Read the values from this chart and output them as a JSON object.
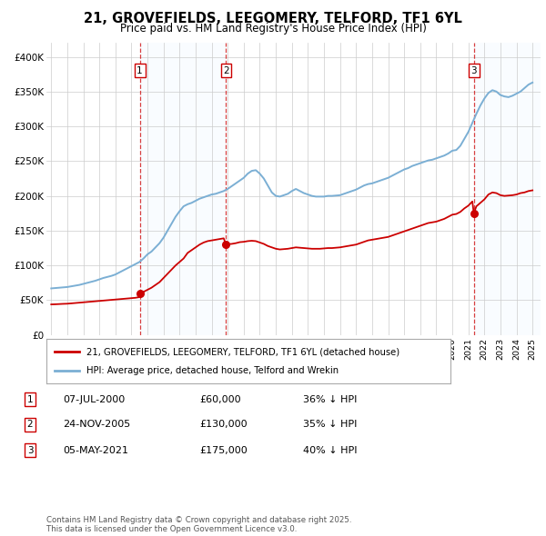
{
  "title": "21, GROVEFIELDS, LEEGOMERY, TELFORD, TF1 6YL",
  "subtitle": "Price paid vs. HM Land Registry's House Price Index (HPI)",
  "hpi_color": "#7bafd4",
  "price_color": "#cc0000",
  "shade_color": "#ddeeff",
  "purchases": [
    {
      "date_num": 2000.52,
      "price": 60000,
      "label": "1"
    },
    {
      "date_num": 2005.9,
      "price": 130000,
      "label": "2"
    },
    {
      "date_num": 2021.34,
      "price": 175000,
      "label": "3"
    }
  ],
  "purchase_dates_str": [
    "07-JUL-2000",
    "24-NOV-2005",
    "05-MAY-2021"
  ],
  "purchase_prices_str": [
    "£60,000",
    "£130,000",
    "£175,000"
  ],
  "purchase_pcts": [
    "36% ↓ HPI",
    "35% ↓ HPI",
    "40% ↓ HPI"
  ],
  "legend_label_red": "21, GROVEFIELDS, LEEGOMERY, TELFORD, TF1 6YL (detached house)",
  "legend_label_blue": "HPI: Average price, detached house, Telford and Wrekin",
  "footnote": "Contains HM Land Registry data © Crown copyright and database right 2025.\nThis data is licensed under the Open Government Licence v3.0.",
  "ylim": [
    0,
    420000
  ],
  "yticks": [
    0,
    50000,
    100000,
    150000,
    200000,
    250000,
    300000,
    350000,
    400000
  ],
  "ytick_labels": [
    "£0",
    "£50K",
    "£100K",
    "£150K",
    "£200K",
    "£250K",
    "£300K",
    "£350K",
    "£400K"
  ],
  "xlim_start": 1994.7,
  "xlim_end": 2025.5,
  "background_color": "#ffffff",
  "grid_color": "#cccccc",
  "hpi_data": [
    [
      1995.0,
      67000
    ],
    [
      1995.25,
      67500
    ],
    [
      1995.5,
      68000
    ],
    [
      1995.75,
      68500
    ],
    [
      1996.0,
      69000
    ],
    [
      1996.25,
      70000
    ],
    [
      1996.5,
      71000
    ],
    [
      1996.75,
      72000
    ],
    [
      1997.0,
      73500
    ],
    [
      1997.25,
      75000
    ],
    [
      1997.5,
      76500
    ],
    [
      1997.75,
      78000
    ],
    [
      1998.0,
      80000
    ],
    [
      1998.25,
      82000
    ],
    [
      1998.5,
      83500
    ],
    [
      1998.75,
      85000
    ],
    [
      1999.0,
      87000
    ],
    [
      1999.25,
      90000
    ],
    [
      1999.5,
      93000
    ],
    [
      1999.75,
      96000
    ],
    [
      2000.0,
      99000
    ],
    [
      2000.25,
      102000
    ],
    [
      2000.5,
      105000
    ],
    [
      2000.75,
      110000
    ],
    [
      2001.0,
      116000
    ],
    [
      2001.25,
      120000
    ],
    [
      2001.5,
      126000
    ],
    [
      2001.75,
      132000
    ],
    [
      2002.0,
      140000
    ],
    [
      2002.25,
      150000
    ],
    [
      2002.5,
      160000
    ],
    [
      2002.75,
      170000
    ],
    [
      2003.0,
      178000
    ],
    [
      2003.25,
      185000
    ],
    [
      2003.5,
      188000
    ],
    [
      2003.75,
      190000
    ],
    [
      2004.0,
      193000
    ],
    [
      2004.25,
      196000
    ],
    [
      2004.5,
      198000
    ],
    [
      2004.75,
      200000
    ],
    [
      2005.0,
      202000
    ],
    [
      2005.25,
      203000
    ],
    [
      2005.5,
      205000
    ],
    [
      2005.75,
      207000
    ],
    [
      2006.0,
      210000
    ],
    [
      2006.25,
      214000
    ],
    [
      2006.5,
      218000
    ],
    [
      2006.75,
      222000
    ],
    [
      2007.0,
      226000
    ],
    [
      2007.25,
      232000
    ],
    [
      2007.5,
      236000
    ],
    [
      2007.75,
      237000
    ],
    [
      2008.0,
      232000
    ],
    [
      2008.25,
      225000
    ],
    [
      2008.5,
      215000
    ],
    [
      2008.75,
      205000
    ],
    [
      2009.0,
      200000
    ],
    [
      2009.25,
      199000
    ],
    [
      2009.5,
      201000
    ],
    [
      2009.75,
      203000
    ],
    [
      2010.0,
      207000
    ],
    [
      2010.25,
      210000
    ],
    [
      2010.5,
      207000
    ],
    [
      2010.75,
      204000
    ],
    [
      2011.0,
      202000
    ],
    [
      2011.25,
      200000
    ],
    [
      2011.5,
      199000
    ],
    [
      2011.75,
      199000
    ],
    [
      2012.0,
      199000
    ],
    [
      2012.25,
      200000
    ],
    [
      2012.5,
      200000
    ],
    [
      2012.75,
      200500
    ],
    [
      2013.0,
      201000
    ],
    [
      2013.25,
      203000
    ],
    [
      2013.5,
      205000
    ],
    [
      2013.75,
      207000
    ],
    [
      2014.0,
      209000
    ],
    [
      2014.25,
      212000
    ],
    [
      2014.5,
      215000
    ],
    [
      2014.75,
      217000
    ],
    [
      2015.0,
      218000
    ],
    [
      2015.25,
      220000
    ],
    [
      2015.5,
      222000
    ],
    [
      2015.75,
      224000
    ],
    [
      2016.0,
      226000
    ],
    [
      2016.25,
      229000
    ],
    [
      2016.5,
      232000
    ],
    [
      2016.75,
      235000
    ],
    [
      2017.0,
      238000
    ],
    [
      2017.25,
      240000
    ],
    [
      2017.5,
      243000
    ],
    [
      2017.75,
      245000
    ],
    [
      2018.0,
      247000
    ],
    [
      2018.25,
      249000
    ],
    [
      2018.5,
      251000
    ],
    [
      2018.75,
      252000
    ],
    [
      2019.0,
      254000
    ],
    [
      2019.25,
      256000
    ],
    [
      2019.5,
      258000
    ],
    [
      2019.75,
      261000
    ],
    [
      2020.0,
      265000
    ],
    [
      2020.25,
      266000
    ],
    [
      2020.5,
      272000
    ],
    [
      2020.75,
      282000
    ],
    [
      2021.0,
      292000
    ],
    [
      2021.25,
      305000
    ],
    [
      2021.5,
      318000
    ],
    [
      2021.75,
      330000
    ],
    [
      2022.0,
      340000
    ],
    [
      2022.25,
      348000
    ],
    [
      2022.5,
      352000
    ],
    [
      2022.75,
      350000
    ],
    [
      2023.0,
      345000
    ],
    [
      2023.25,
      343000
    ],
    [
      2023.5,
      342000
    ],
    [
      2023.75,
      344000
    ],
    [
      2024.0,
      347000
    ],
    [
      2024.25,
      350000
    ],
    [
      2024.5,
      355000
    ],
    [
      2024.75,
      360000
    ],
    [
      2025.0,
      363000
    ]
  ],
  "price_data": [
    [
      1995.0,
      44000
    ],
    [
      1995.25,
      44200
    ],
    [
      1995.5,
      44500
    ],
    [
      1995.75,
      44800
    ],
    [
      1996.0,
      45000
    ],
    [
      1996.25,
      45500
    ],
    [
      1996.5,
      46000
    ],
    [
      1996.75,
      46500
    ],
    [
      1997.0,
      47000
    ],
    [
      1997.25,
      47500
    ],
    [
      1997.5,
      48000
    ],
    [
      1997.75,
      48500
    ],
    [
      1998.0,
      49000
    ],
    [
      1998.25,
      49500
    ],
    [
      1998.5,
      50000
    ],
    [
      1998.75,
      50500
    ],
    [
      1999.0,
      51000
    ],
    [
      1999.25,
      51500
    ],
    [
      1999.5,
      52000
    ],
    [
      1999.75,
      52500
    ],
    [
      2000.0,
      53000
    ],
    [
      2000.25,
      53500
    ],
    [
      2000.5,
      54500
    ],
    [
      2000.52,
      60000
    ],
    [
      2000.75,
      62000
    ],
    [
      2001.0,
      65000
    ],
    [
      2001.25,
      68000
    ],
    [
      2001.5,
      72000
    ],
    [
      2001.75,
      76000
    ],
    [
      2002.0,
      82000
    ],
    [
      2002.25,
      88000
    ],
    [
      2002.5,
      94000
    ],
    [
      2002.75,
      100000
    ],
    [
      2003.0,
      105000
    ],
    [
      2003.25,
      110000
    ],
    [
      2003.5,
      118000
    ],
    [
      2003.75,
      122000
    ],
    [
      2004.0,
      126000
    ],
    [
      2004.25,
      130000
    ],
    [
      2004.5,
      133000
    ],
    [
      2004.75,
      135000
    ],
    [
      2005.0,
      136000
    ],
    [
      2005.25,
      137000
    ],
    [
      2005.5,
      138000
    ],
    [
      2005.75,
      139000
    ],
    [
      2005.9,
      130000
    ],
    [
      2006.0,
      130500
    ],
    [
      2006.25,
      131000
    ],
    [
      2006.5,
      132000
    ],
    [
      2006.75,
      133500
    ],
    [
      2007.0,
      134000
    ],
    [
      2007.25,
      135000
    ],
    [
      2007.5,
      135500
    ],
    [
      2007.75,
      135000
    ],
    [
      2008.0,
      133000
    ],
    [
      2008.25,
      131000
    ],
    [
      2008.5,
      128000
    ],
    [
      2008.75,
      126000
    ],
    [
      2009.0,
      124000
    ],
    [
      2009.25,
      123000
    ],
    [
      2009.5,
      123500
    ],
    [
      2009.75,
      124000
    ],
    [
      2010.0,
      125000
    ],
    [
      2010.25,
      126000
    ],
    [
      2010.5,
      125500
    ],
    [
      2010.75,
      125000
    ],
    [
      2011.0,
      124500
    ],
    [
      2011.25,
      124000
    ],
    [
      2011.5,
      124000
    ],
    [
      2011.75,
      124000
    ],
    [
      2012.0,
      124500
    ],
    [
      2012.25,
      125000
    ],
    [
      2012.5,
      125000
    ],
    [
      2012.75,
      125500
    ],
    [
      2013.0,
      126000
    ],
    [
      2013.25,
      127000
    ],
    [
      2013.5,
      128000
    ],
    [
      2013.75,
      129000
    ],
    [
      2014.0,
      130000
    ],
    [
      2014.25,
      132000
    ],
    [
      2014.5,
      134000
    ],
    [
      2014.75,
      136000
    ],
    [
      2015.0,
      137000
    ],
    [
      2015.25,
      138000
    ],
    [
      2015.5,
      139000
    ],
    [
      2015.75,
      140000
    ],
    [
      2016.0,
      141000
    ],
    [
      2016.25,
      143000
    ],
    [
      2016.5,
      145000
    ],
    [
      2016.75,
      147000
    ],
    [
      2017.0,
      149000
    ],
    [
      2017.25,
      151000
    ],
    [
      2017.5,
      153000
    ],
    [
      2017.75,
      155000
    ],
    [
      2018.0,
      157000
    ],
    [
      2018.25,
      159000
    ],
    [
      2018.5,
      161000
    ],
    [
      2018.75,
      162000
    ],
    [
      2019.0,
      163000
    ],
    [
      2019.25,
      165000
    ],
    [
      2019.5,
      167000
    ],
    [
      2019.75,
      170000
    ],
    [
      2020.0,
      173000
    ],
    [
      2020.25,
      174000
    ],
    [
      2020.5,
      177000
    ],
    [
      2020.75,
      182000
    ],
    [
      2021.0,
      186000
    ],
    [
      2021.25,
      192000
    ],
    [
      2021.34,
      175000
    ],
    [
      2021.5,
      185000
    ],
    [
      2021.75,
      190000
    ],
    [
      2022.0,
      195000
    ],
    [
      2022.25,
      202000
    ],
    [
      2022.5,
      205000
    ],
    [
      2022.75,
      204000
    ],
    [
      2023.0,
      201000
    ],
    [
      2023.25,
      200000
    ],
    [
      2023.5,
      200500
    ],
    [
      2023.75,
      201000
    ],
    [
      2024.0,
      202000
    ],
    [
      2024.25,
      204000
    ],
    [
      2024.5,
      205000
    ],
    [
      2024.75,
      207000
    ],
    [
      2025.0,
      208000
    ]
  ]
}
